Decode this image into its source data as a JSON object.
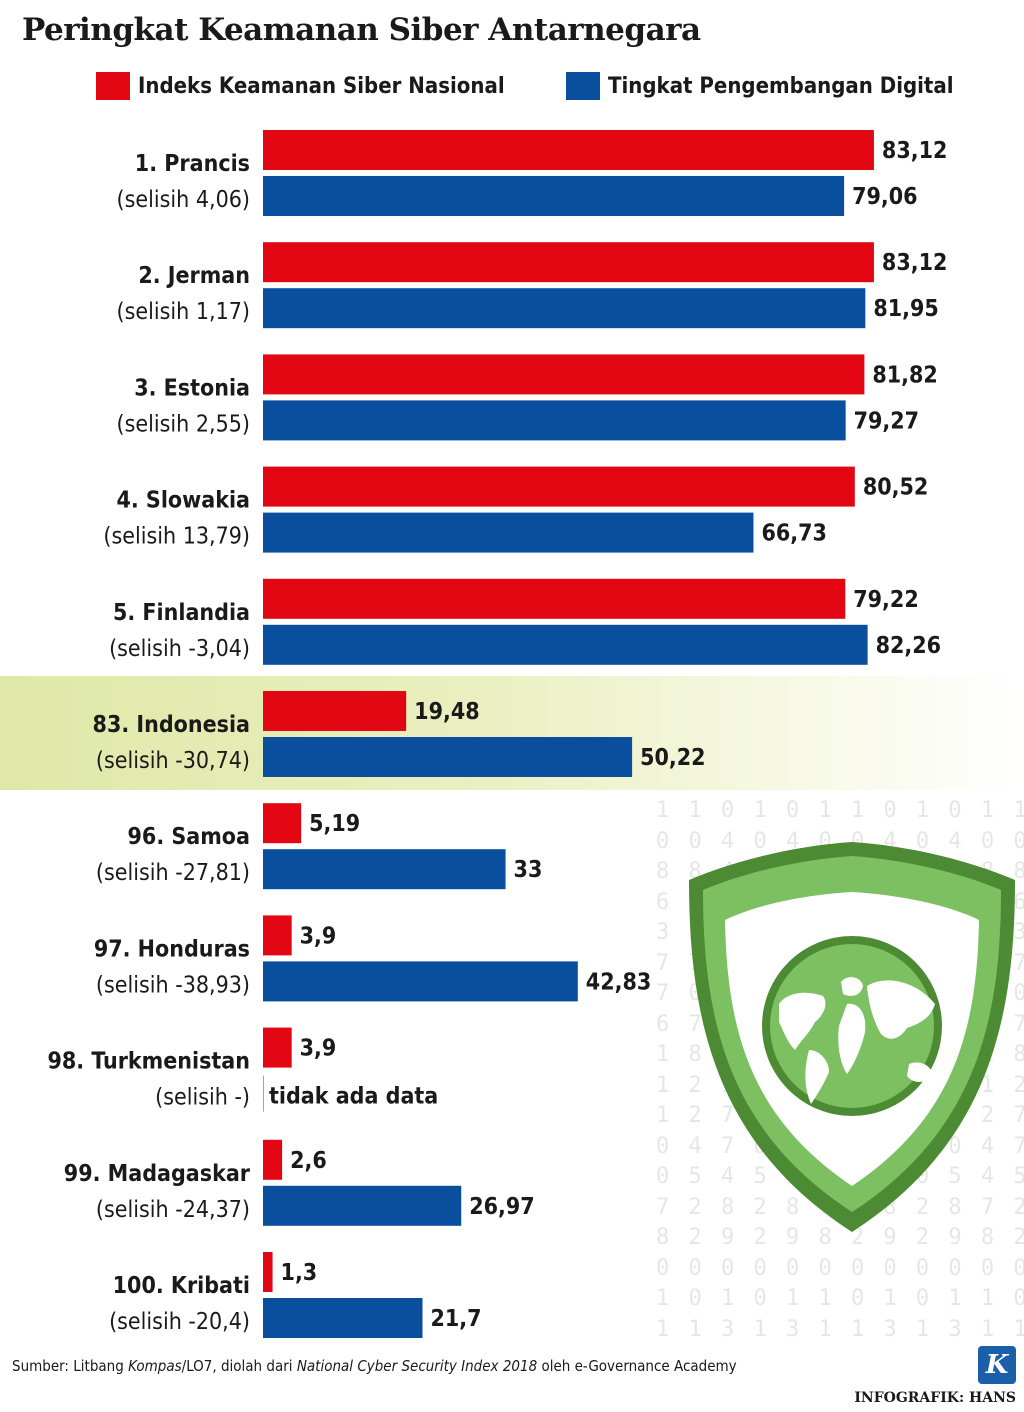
{
  "chart_data": {
    "type": "bar",
    "orientation": "horizontal",
    "title": "Peringkat Keamanan Siber Antarnegara",
    "series": [
      {
        "name": "Indeks Keamanan Siber Nasional",
        "color": "#e30613",
        "values": [
          83.12,
          83.12,
          81.82,
          80.52,
          79.22,
          19.48,
          5.19,
          3.9,
          3.9,
          2.6,
          1.3
        ],
        "labels": [
          "83,12",
          "83,12",
          "81,82",
          "80,52",
          "79,22",
          "19,48",
          "5,19",
          "3,9",
          "3,9",
          "2,6",
          "1,3"
        ]
      },
      {
        "name": "Tingkat Pengembangan Digital",
        "color": "#0a4e9e",
        "values": [
          79.06,
          81.95,
          79.27,
          66.73,
          82.26,
          50.22,
          33,
          42.83,
          null,
          26.97,
          21.7
        ],
        "labels": [
          "79,06",
          "81,95",
          "79,27",
          "66,73",
          "82,26",
          "50,22",
          "33",
          "42,83",
          "tidak ada data",
          "26,97",
          "21,7"
        ]
      }
    ],
    "categories": [
      "1. Prancis",
      "2. Jerman",
      "3. Estonia",
      "4. Slowakia",
      "5. Finlandia",
      "83. Indonesia",
      "96. Samoa",
      "97. Honduras",
      "98. Turkmenistan",
      "99. Madagaskar",
      "100. Kribati"
    ],
    "subcategories": [
      "(selisih 4,06)",
      "(selisih 1,17)",
      "(selisih 2,55)",
      "(selisih 13,79)",
      "(selisih -3,04)",
      "(selisih -30,74)",
      "(selisih -27,81)",
      "(selisih -38,93)",
      "(selisih -)",
      "(selisih -24,37)",
      "(selisih -20,4)"
    ],
    "highlight": "83. Indonesia",
    "highlight_color": "#e3ebb3",
    "xlim": [
      0,
      100
    ],
    "grid": false,
    "legend_position": "top"
  },
  "background_digits": [
    "1 1 0 1 0 1 1 0 1 0 1 1 0 1 0 1",
    "0 0 4 0 4 0 0 4 0 4 0 0 4 0 4 0",
    "8 8 4 8 4 8 8 4 8 4 8 8 4 8 4 8",
    "6 6 6 6 6 6 6 6 6 6 6 6 6 6 6 6",
    "3 3 3 3 3 3 3 3 3 3 3 3 3 3 3 3",
    "7 7 7 7 7 7 7 7 7 7 7 7 7 7 7 7",
    "7 0 7 0 7 7 0 7 0 7 7 0 7 0 7 7",
    "6 7 6 7 6 6 7 6 7 6 6 7 6 7 6 6",
    "1 8 1 8 1 1 8 1 8 1 1 8 1 8 0 1",
    "1 2 1 2 1 1 2 1 2 1 1 2 1 2 1 1",
    "1 2 7 1 2 7 1 2 7 1 2 7 1 2 7 1",
    "0 4 7 0 4 7 0 4 7 0 4 7 0 4 7 0",
    "0 5 4 5 0 5 4 5 0 5 4 5 0 5 4 0",
    "7 2 8 2 8 7 2 8 2 8 7 2 8 2 8 7",
    "8 2 9 2 9 8 2 9 2 9 8 2 9 2 9 8",
    "0 0 0 0 0 0 0 0 0 0 0 0 0 0 0 0",
    "1 0 1 0 1 1 0 1 0 1 1 0 1 0 1 1",
    "1 1 3 1 3 1 1 3 1 3 1 1 3 1 3 1"
  ],
  "source": {
    "prefix": "Sumber: Litbang ",
    "kompas": "Kompas",
    "mid": "/LO7, diolah dari ",
    "report": "National Cyber Security Index 2018",
    "suffix": " oleh e-Governance Academy"
  },
  "logo_letter": "K",
  "credit": "INFOGRAFIK: HANS"
}
